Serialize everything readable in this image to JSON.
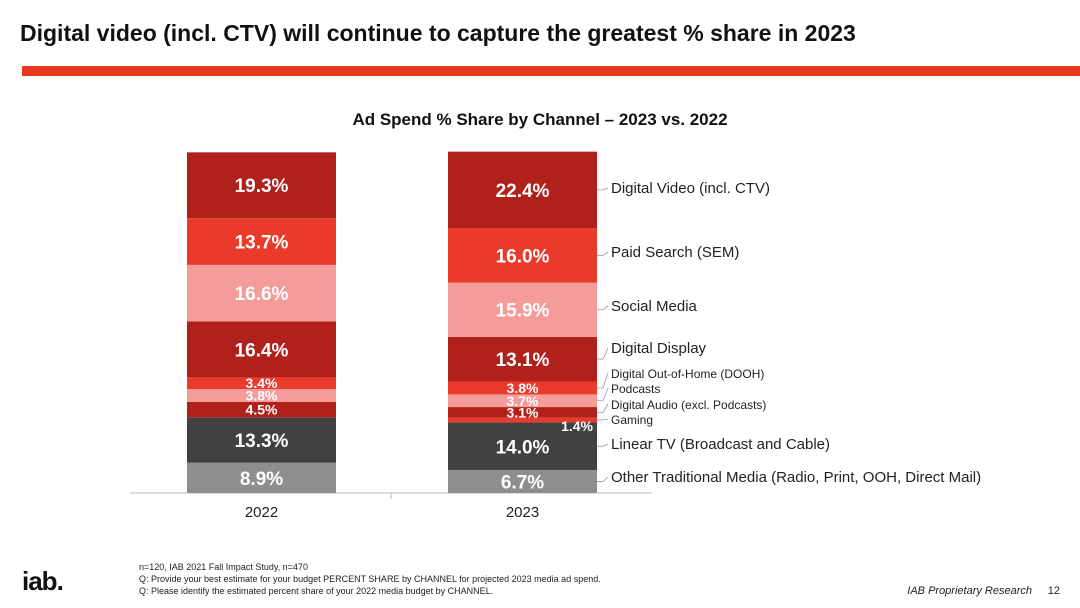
{
  "title": "Digital video (incl. CTV) will continue to capture the greatest % share in 2023",
  "footer": {
    "note1": "n=120, IAB 2021 Fall Impact Study, n=470",
    "note2": "Q: Provide your best estimate for your budget PERCENT SHARE by CHANNEL for projected 2023 media ad spend.",
    "note3": "Q: Please identify the estimated percent share of your 2022 media budget by CHANNEL.",
    "logo": "iab.",
    "proprietary": "IAB Proprietary Research",
    "page": "12"
  },
  "chart_data": {
    "type": "bar",
    "stacked": true,
    "title": "Ad Spend % Share by Channel – 2023 vs. 2022",
    "categories": [
      "2022",
      "2023"
    ],
    "series": [
      {
        "name": "Digital Video (incl. CTV)",
        "color": "#b1211c",
        "values": [
          19.3,
          22.4
        ]
      },
      {
        "name": "Paid Search (SEM)",
        "color": "#ea3a2c",
        "values": [
          13.7,
          16.0
        ]
      },
      {
        "name": "Social Media",
        "color": "#f49c9a",
        "values": [
          16.6,
          15.9
        ]
      },
      {
        "name": "Digital Display",
        "color": "#b1211c",
        "values": [
          16.4,
          13.1
        ]
      },
      {
        "name": "Digital Out-of-Home (DOOH)",
        "color": "#ea3a2c",
        "values": [
          3.4,
          3.8
        ]
      },
      {
        "name": "Podcasts",
        "color": "#f49c9a",
        "values": [
          3.8,
          3.7
        ]
      },
      {
        "name": "Digital Audio (excl. Podcasts)",
        "color": "#b1211c",
        "values": [
          4.5,
          3.1
        ]
      },
      {
        "name": "Gaming",
        "color": "#ea3a2c",
        "values": [
          null,
          1.4
        ]
      },
      {
        "name": "Linear TV (Broadcast and Cable)",
        "color": "#414141",
        "values": [
          13.3,
          14.0
        ]
      },
      {
        "name": "Other Traditional Media (Radio, Print, OOH, Direct Mail)",
        "color": "#8e8e8e",
        "values": [
          8.9,
          6.7
        ]
      }
    ],
    "labels": [
      [
        "19.3%",
        "22.4%"
      ],
      [
        "13.7%",
        "16.0%"
      ],
      [
        "16.6%",
        "15.9%"
      ],
      [
        "16.4%",
        "13.1%"
      ],
      [
        "3.4%",
        "3.8%"
      ],
      [
        "3.8%",
        "3.7%"
      ],
      [
        "4.5%",
        "3.1%"
      ],
      [
        null,
        "1.4%"
      ],
      [
        "13.3%",
        "14.0%"
      ],
      [
        "8.9%",
        "6.7%"
      ]
    ],
    "legend": "right"
  }
}
